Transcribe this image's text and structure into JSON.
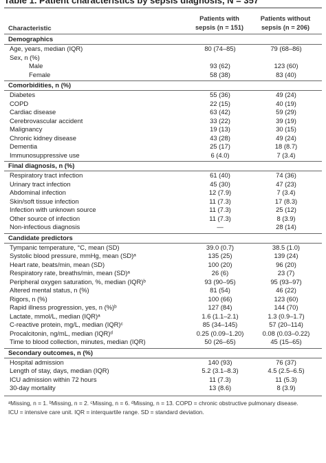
{
  "title": "Table 1. Patient characteristics by sepsis diagnosis, N = 357",
  "header": {
    "characteristic": "Characteristic",
    "col1": "Patients with sepsis (n = 151)",
    "col1_line1": "Patients with",
    "col1_line2": "sepsis (n = 151)",
    "col2": "Patients without sepsis (n = 206)",
    "col2_line1": "Patients without",
    "col2_line2": "sepsis (n = 206)"
  },
  "rows": [
    {
      "label": "Demographics",
      "section": true
    },
    {
      "label": "Age, years, median (IQR)",
      "v1": "80 (74–85)",
      "v2": "79 (68–86)"
    },
    {
      "label": "Sex, n (%)",
      "v1": "",
      "v2": ""
    },
    {
      "label": "Male",
      "indent": true,
      "v1": "93 (62)",
      "v2": "123 (60)"
    },
    {
      "label": "Female",
      "indent": true,
      "v1": "58 (38)",
      "v2": "83 (40)"
    },
    {
      "label": "Comorbidities, n (%)",
      "section": true
    },
    {
      "label": "Diabetes",
      "v1": "55 (36)",
      "v2": "49 (24)"
    },
    {
      "label": "COPD",
      "v1": "22 (15)",
      "v2": "40 (19)"
    },
    {
      "label": "Cardiac disease",
      "v1": "63 (42)",
      "v2": "59 (29)"
    },
    {
      "label": "Cerebrovascular accident",
      "v1": "33 (22)",
      "v2": "39 (19)"
    },
    {
      "label": "Malignancy",
      "v1": "19 (13)",
      "v2": "30 (15)"
    },
    {
      "label": "Chronic kidney disease",
      "v1": "43 (28)",
      "v2": "49 (24)"
    },
    {
      "label": "Dementia",
      "v1": "25 (17)",
      "v2": "18 (8.7)"
    },
    {
      "label": "Immunosuppressive use",
      "v1": "6 (4.0)",
      "v2": "7 (3.4)"
    },
    {
      "label": "Final diagnosis, n (%)",
      "section": true
    },
    {
      "label": "Respiratory tract infection",
      "v1": "61 (40)",
      "v2": "74 (36)"
    },
    {
      "label": "Urinary tract infection",
      "v1": "45 (30)",
      "v2": "47 (23)"
    },
    {
      "label": "Abdominal infection",
      "v1": "12 (7.9)",
      "v2": "7 (3.4)"
    },
    {
      "label": "Skin/soft tissue infection",
      "v1": "11 (7.3)",
      "v2": "17 (8.3)"
    },
    {
      "label": "Infection with unknown source",
      "v1": "11 (7.3)",
      "v2": "25 (12)"
    },
    {
      "label": "Other source of infection",
      "v1": "11 (7.3)",
      "v2": "8 (3.9)"
    },
    {
      "label": "Non-infectious diagnosis",
      "v1": "—",
      "v2": "28 (14)"
    },
    {
      "label": "Candidate predictors",
      "section": true
    },
    {
      "label": "Tympanic temperature, °C, mean (SD)",
      "v1": "39.0 (0.7)",
      "v2": "38.5 (1.0)"
    },
    {
      "label": "Systolic blood pressure, mmHg, mean (SD)ᵃ",
      "v1": "135 (25)",
      "v2": "139 (24)"
    },
    {
      "label": "Heart rate, beats/min, mean (SD)",
      "v1": "100 (20)",
      "v2": "96 (20)"
    },
    {
      "label": "Respiratory rate, breaths/min, mean (SD)ᵃ",
      "v1": "26 (6)",
      "v2": "23 (7)"
    },
    {
      "label": "Peripheral oxygen saturation, %, median (IQR)ᵇ",
      "v1": "93 (90–95)",
      "v2": "95 (93–97)"
    },
    {
      "label": "Altered mental status, n (%)",
      "v1": "81 (54)",
      "v2": "46 (22)"
    },
    {
      "label": "Rigors, n (%)",
      "v1": "100 (66)",
      "v2": "123 (60)"
    },
    {
      "label": "Rapid illness progression, yes, n (%)ᵇ",
      "v1": "127 (84)",
      "v2": "144 (70)"
    },
    {
      "label": "Lactate, mmol/L, median (IQR)ᵃ",
      "v1": "1.6 (1.1–2.1)",
      "v2": "1.3 (0.9–1.7)"
    },
    {
      "label": "C-reactive protein, mg/L, median (IQR)ᶜ",
      "v1": "85 (34–145)",
      "v2": "57 (20–114)"
    },
    {
      "label": "Procalcitonin, ng/mL, median (IQR)ᵈ",
      "v1": "0.25 (0.09–1.20)",
      "v2": "0.08 (0.03–0.22)"
    },
    {
      "label": "Time to blood collection, minutes, median (IQR)",
      "v1": "50 (26–65)",
      "v2": "45 (15–65)"
    },
    {
      "label": "Secondary outcomes, n (%)",
      "section": true
    },
    {
      "label": "Hospital admission",
      "v1": "140 (93)",
      "v2": "76 (37)"
    },
    {
      "label": "Length of stay, days, median (IQR)",
      "v1": "5.2 (3.1–8.3)",
      "v2": "4.5 (2.5–6.5)"
    },
    {
      "label": "ICU admission within 72 hours",
      "v1": "11 (7.3)",
      "v2": "11 (5.3)"
    },
    {
      "label": "30-day mortality",
      "v1": "13 (8.6)",
      "v2": "8 (3.9)"
    }
  ],
  "footnote": {
    "line1": "ᵃMissing, n = 1. ᵇMissing, n = 2. ᶜMissing, n = 6. ᵈMissing, n = 13. COPD = chronic obstructive pulmonary disease.",
    "line2": "ICU = intensive care unit. IQR = interquartile range. SD = standard deviation."
  }
}
